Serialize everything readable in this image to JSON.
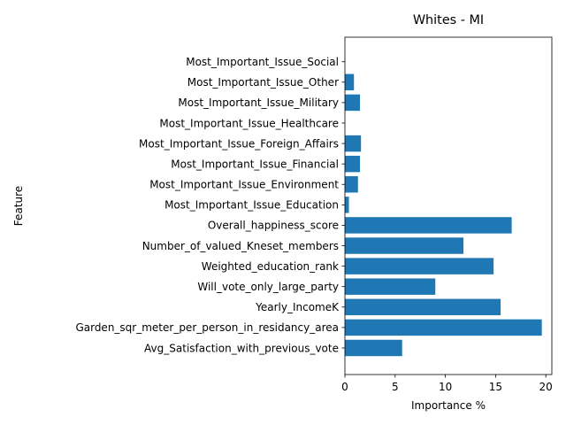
{
  "chart_data": {
    "type": "bar",
    "orientation": "horizontal",
    "title": "Whites - MI",
    "xlabel": "Importance %",
    "ylabel": "Feature",
    "xlim": [
      0,
      20.6
    ],
    "xticks": [
      0,
      5,
      10,
      15,
      20
    ],
    "grid": false,
    "bar_color": "#1f77b4",
    "categories": [
      "Avg_Satisfaction_with_previous_vote",
      "Garden_sqr_meter_per_person_in_residancy_area",
      "Yearly_IncomeK",
      "Will_vote_only_large_party",
      "Weighted_education_rank",
      "Number_of_valued_Kneset_members",
      "Overall_happiness_score",
      "Most_Important_Issue_Education",
      "Most_Important_Issue_Environment",
      "Most_Important_Issue_Financial",
      "Most_Important_Issue_Foreign_Affairs",
      "Most_Important_Issue_Healthcare",
      "Most_Important_Issue_Military",
      "Most_Important_Issue_Other",
      "Most_Important_Issue_Social"
    ],
    "values": [
      5.7,
      19.6,
      15.5,
      9.0,
      14.8,
      11.8,
      16.6,
      0.4,
      1.3,
      1.5,
      1.6,
      0.0,
      1.5,
      0.9,
      0.0
    ]
  }
}
